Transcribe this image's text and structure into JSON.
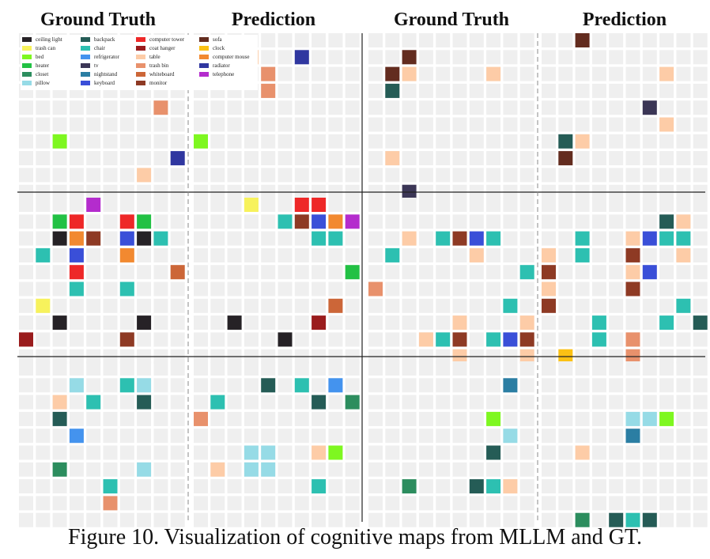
{
  "headers": [
    "Ground Truth",
    "Prediction",
    "Ground Truth",
    "Prediction"
  ],
  "caption": "Figure 10. Visualization of cognitive maps from MLLM and GT.",
  "grid": {
    "cols": 10,
    "rows": 10,
    "empty_color": "#efefef"
  },
  "legend": {
    "columns": [
      [
        "ceiling light",
        "trash can",
        "bed",
        "heater",
        "closet",
        "pillow"
      ],
      [
        "backpack",
        "chair",
        "refrigerator",
        "tv",
        "nightstand",
        "keyboard"
      ],
      [
        "computer tower",
        "coat hanger",
        "table",
        "trash bin",
        "whiteboard",
        "monitor"
      ],
      [
        "sofa",
        "clock",
        "computer mouse",
        "radiator",
        "telephone"
      ]
    ]
  },
  "categories": {
    "ceiling light": "#262226",
    "trash can": "#f7f25c",
    "bed": "#7ef720",
    "heater": "#22c144",
    "closet": "#2c8d5e",
    "pillow": "#96dbe6",
    "backpack": "#255c56",
    "chair": "#2dc0b1",
    "refrigerator": "#4493ee",
    "tv": "#3b3656",
    "nightstand": "#2b7ea3",
    "keyboard": "#3a4fd8",
    "computer tower": "#ee2828",
    "coat hanger": "#9a1c1d",
    "table": "#fdcca7",
    "trash bin": "#e8916c",
    "whiteboard": "#cc6638",
    "monitor": "#8e3a24",
    "sofa": "#632c1f",
    "clock": "#fbc114",
    "computer mouse": "#f28930",
    "radiator": "#3037a0",
    "telephone": "#b42ccd"
  },
  "panels": [
    {
      "row": 0,
      "col": 0,
      "cells": [
        [
          2,
          6,
          "bed"
        ],
        [
          8,
          4,
          "trash bin"
        ],
        [
          9,
          7,
          "radiator"
        ],
        [
          7,
          8,
          "table"
        ]
      ]
    },
    {
      "row": 0,
      "col": 1,
      "cells": [
        [
          3,
          1,
          "table"
        ],
        [
          4,
          2,
          "trash bin"
        ],
        [
          4,
          3,
          "trash bin"
        ],
        [
          6,
          1,
          "radiator"
        ],
        [
          0,
          6,
          "bed"
        ]
      ]
    },
    {
      "row": 0,
      "col": 2,
      "cells": [
        [
          2,
          1,
          "sofa"
        ],
        [
          1,
          2,
          "sofa"
        ],
        [
          2,
          2,
          "table"
        ],
        [
          1,
          3,
          "backpack"
        ],
        [
          7,
          2,
          "table"
        ],
        [
          1,
          7,
          "table"
        ],
        [
          2,
          9,
          "tv"
        ]
      ]
    },
    {
      "row": 0,
      "col": 3,
      "cells": [
        [
          2,
          0,
          "sofa"
        ],
        [
          7,
          2,
          "table"
        ],
        [
          6,
          4,
          "tv"
        ],
        [
          7,
          5,
          "table"
        ],
        [
          1,
          6,
          "backpack"
        ],
        [
          2,
          6,
          "table"
        ],
        [
          1,
          7,
          "sofa"
        ]
      ]
    },
    {
      "row": 1,
      "col": 0,
      "cells": [
        [
          4,
          0,
          "telephone"
        ],
        [
          2,
          1,
          "heater"
        ],
        [
          3,
          1,
          "computer tower"
        ],
        [
          6,
          1,
          "computer tower"
        ],
        [
          7,
          1,
          "heater"
        ],
        [
          2,
          2,
          "ceiling light"
        ],
        [
          3,
          2,
          "computer mouse"
        ],
        [
          4,
          2,
          "monitor"
        ],
        [
          6,
          2,
          "keyboard"
        ],
        [
          7,
          2,
          "ceiling light"
        ],
        [
          8,
          2,
          "chair"
        ],
        [
          1,
          3,
          "chair"
        ],
        [
          3,
          3,
          "keyboard"
        ],
        [
          6,
          3,
          "computer mouse"
        ],
        [
          3,
          4,
          "computer tower"
        ],
        [
          9,
          4,
          "whiteboard"
        ],
        [
          3,
          5,
          "chair"
        ],
        [
          6,
          5,
          "chair"
        ],
        [
          1,
          6,
          "trash can"
        ],
        [
          2,
          7,
          "ceiling light"
        ],
        [
          7,
          7,
          "ceiling light"
        ],
        [
          0,
          8,
          "coat hanger"
        ],
        [
          6,
          8,
          "monitor"
        ]
      ]
    },
    {
      "row": 1,
      "col": 1,
      "cells": [
        [
          3,
          0,
          "trash can"
        ],
        [
          6,
          0,
          "computer tower"
        ],
        [
          7,
          0,
          "computer tower"
        ],
        [
          5,
          1,
          "chair"
        ],
        [
          6,
          1,
          "monitor"
        ],
        [
          7,
          1,
          "keyboard"
        ],
        [
          8,
          1,
          "computer mouse"
        ],
        [
          9,
          1,
          "telephone"
        ],
        [
          7,
          2,
          "chair"
        ],
        [
          8,
          2,
          "chair"
        ],
        [
          9,
          4,
          "heater"
        ],
        [
          8,
          6,
          "whiteboard"
        ],
        [
          2,
          7,
          "ceiling light"
        ],
        [
          7,
          7,
          "coat hanger"
        ],
        [
          5,
          8,
          "ceiling light"
        ]
      ]
    },
    {
      "row": 1,
      "col": 2,
      "cells": [
        [
          2,
          2,
          "table"
        ],
        [
          4,
          2,
          "chair"
        ],
        [
          5,
          2,
          "monitor"
        ],
        [
          6,
          2,
          "keyboard"
        ],
        [
          7,
          2,
          "chair"
        ],
        [
          1,
          3,
          "chair"
        ],
        [
          6,
          3,
          "table"
        ],
        [
          9,
          4,
          "chair"
        ],
        [
          0,
          5,
          "trash bin"
        ],
        [
          8,
          6,
          "chair"
        ],
        [
          5,
          7,
          "table"
        ],
        [
          9,
          7,
          "table"
        ],
        [
          3,
          8,
          "table"
        ],
        [
          4,
          8,
          "chair"
        ],
        [
          5,
          8,
          "monitor"
        ],
        [
          7,
          8,
          "chair"
        ],
        [
          8,
          8,
          "keyboard"
        ],
        [
          9,
          8,
          "monitor"
        ],
        [
          5,
          9,
          "table"
        ],
        [
          9,
          9,
          "table"
        ]
      ]
    },
    {
      "row": 1,
      "col": 3,
      "cells": [
        [
          7,
          1,
          "backpack"
        ],
        [
          8,
          1,
          "table"
        ],
        [
          2,
          2,
          "chair"
        ],
        [
          5,
          2,
          "table"
        ],
        [
          6,
          2,
          "keyboard"
        ],
        [
          7,
          2,
          "chair"
        ],
        [
          8,
          2,
          "chair"
        ],
        [
          0,
          3,
          "table"
        ],
        [
          2,
          3,
          "chair"
        ],
        [
          5,
          3,
          "monitor"
        ],
        [
          8,
          3,
          "table"
        ],
        [
          0,
          4,
          "monitor"
        ],
        [
          5,
          4,
          "table"
        ],
        [
          6,
          4,
          "keyboard"
        ],
        [
          0,
          5,
          "table"
        ],
        [
          5,
          5,
          "monitor"
        ],
        [
          0,
          6,
          "monitor"
        ],
        [
          8,
          6,
          "chair"
        ],
        [
          3,
          7,
          "chair"
        ],
        [
          7,
          7,
          "chair"
        ],
        [
          9,
          7,
          "backpack"
        ],
        [
          3,
          8,
          "chair"
        ],
        [
          5,
          8,
          "trash bin"
        ],
        [
          1,
          9,
          "clock"
        ],
        [
          5,
          9,
          "trash bin"
        ]
      ]
    },
    {
      "row": 2,
      "col": 0,
      "cells": [
        [
          3,
          1,
          "pillow"
        ],
        [
          6,
          1,
          "chair"
        ],
        [
          7,
          1,
          "pillow"
        ],
        [
          2,
          2,
          "table"
        ],
        [
          4,
          2,
          "chair"
        ],
        [
          7,
          2,
          "backpack"
        ],
        [
          2,
          3,
          "backpack"
        ],
        [
          3,
          4,
          "refrigerator"
        ],
        [
          2,
          6,
          "closet"
        ],
        [
          7,
          6,
          "pillow"
        ],
        [
          5,
          7,
          "chair"
        ],
        [
          5,
          8,
          "trash bin"
        ]
      ]
    },
    {
      "row": 2,
      "col": 1,
      "cells": [
        [
          4,
          1,
          "backpack"
        ],
        [
          6,
          1,
          "chair"
        ],
        [
          8,
          1,
          "refrigerator"
        ],
        [
          1,
          2,
          "chair"
        ],
        [
          7,
          2,
          "backpack"
        ],
        [
          9,
          2,
          "closet"
        ],
        [
          0,
          3,
          "trash bin"
        ],
        [
          3,
          5,
          "pillow"
        ],
        [
          4,
          5,
          "pillow"
        ],
        [
          7,
          5,
          "table"
        ],
        [
          8,
          5,
          "bed"
        ],
        [
          1,
          6,
          "table"
        ],
        [
          3,
          6,
          "pillow"
        ],
        [
          4,
          6,
          "pillow"
        ],
        [
          7,
          7,
          "chair"
        ]
      ]
    },
    {
      "row": 2,
      "col": 2,
      "cells": [
        [
          8,
          1,
          "nightstand"
        ],
        [
          7,
          3,
          "bed"
        ],
        [
          8,
          4,
          "pillow"
        ],
        [
          7,
          5,
          "backpack"
        ],
        [
          2,
          7,
          "closet"
        ],
        [
          6,
          7,
          "backpack"
        ],
        [
          7,
          7,
          "chair"
        ],
        [
          8,
          7,
          "table"
        ]
      ]
    },
    {
      "row": 2,
      "col": 3,
      "cells": [
        [
          5,
          3,
          "pillow"
        ],
        [
          6,
          3,
          "pillow"
        ],
        [
          7,
          3,
          "bed"
        ],
        [
          5,
          4,
          "nightstand"
        ],
        [
          2,
          5,
          "table"
        ],
        [
          2,
          9,
          "closet"
        ],
        [
          4,
          9,
          "backpack"
        ],
        [
          5,
          9,
          "chair"
        ],
        [
          6,
          9,
          "backpack"
        ]
      ]
    }
  ]
}
